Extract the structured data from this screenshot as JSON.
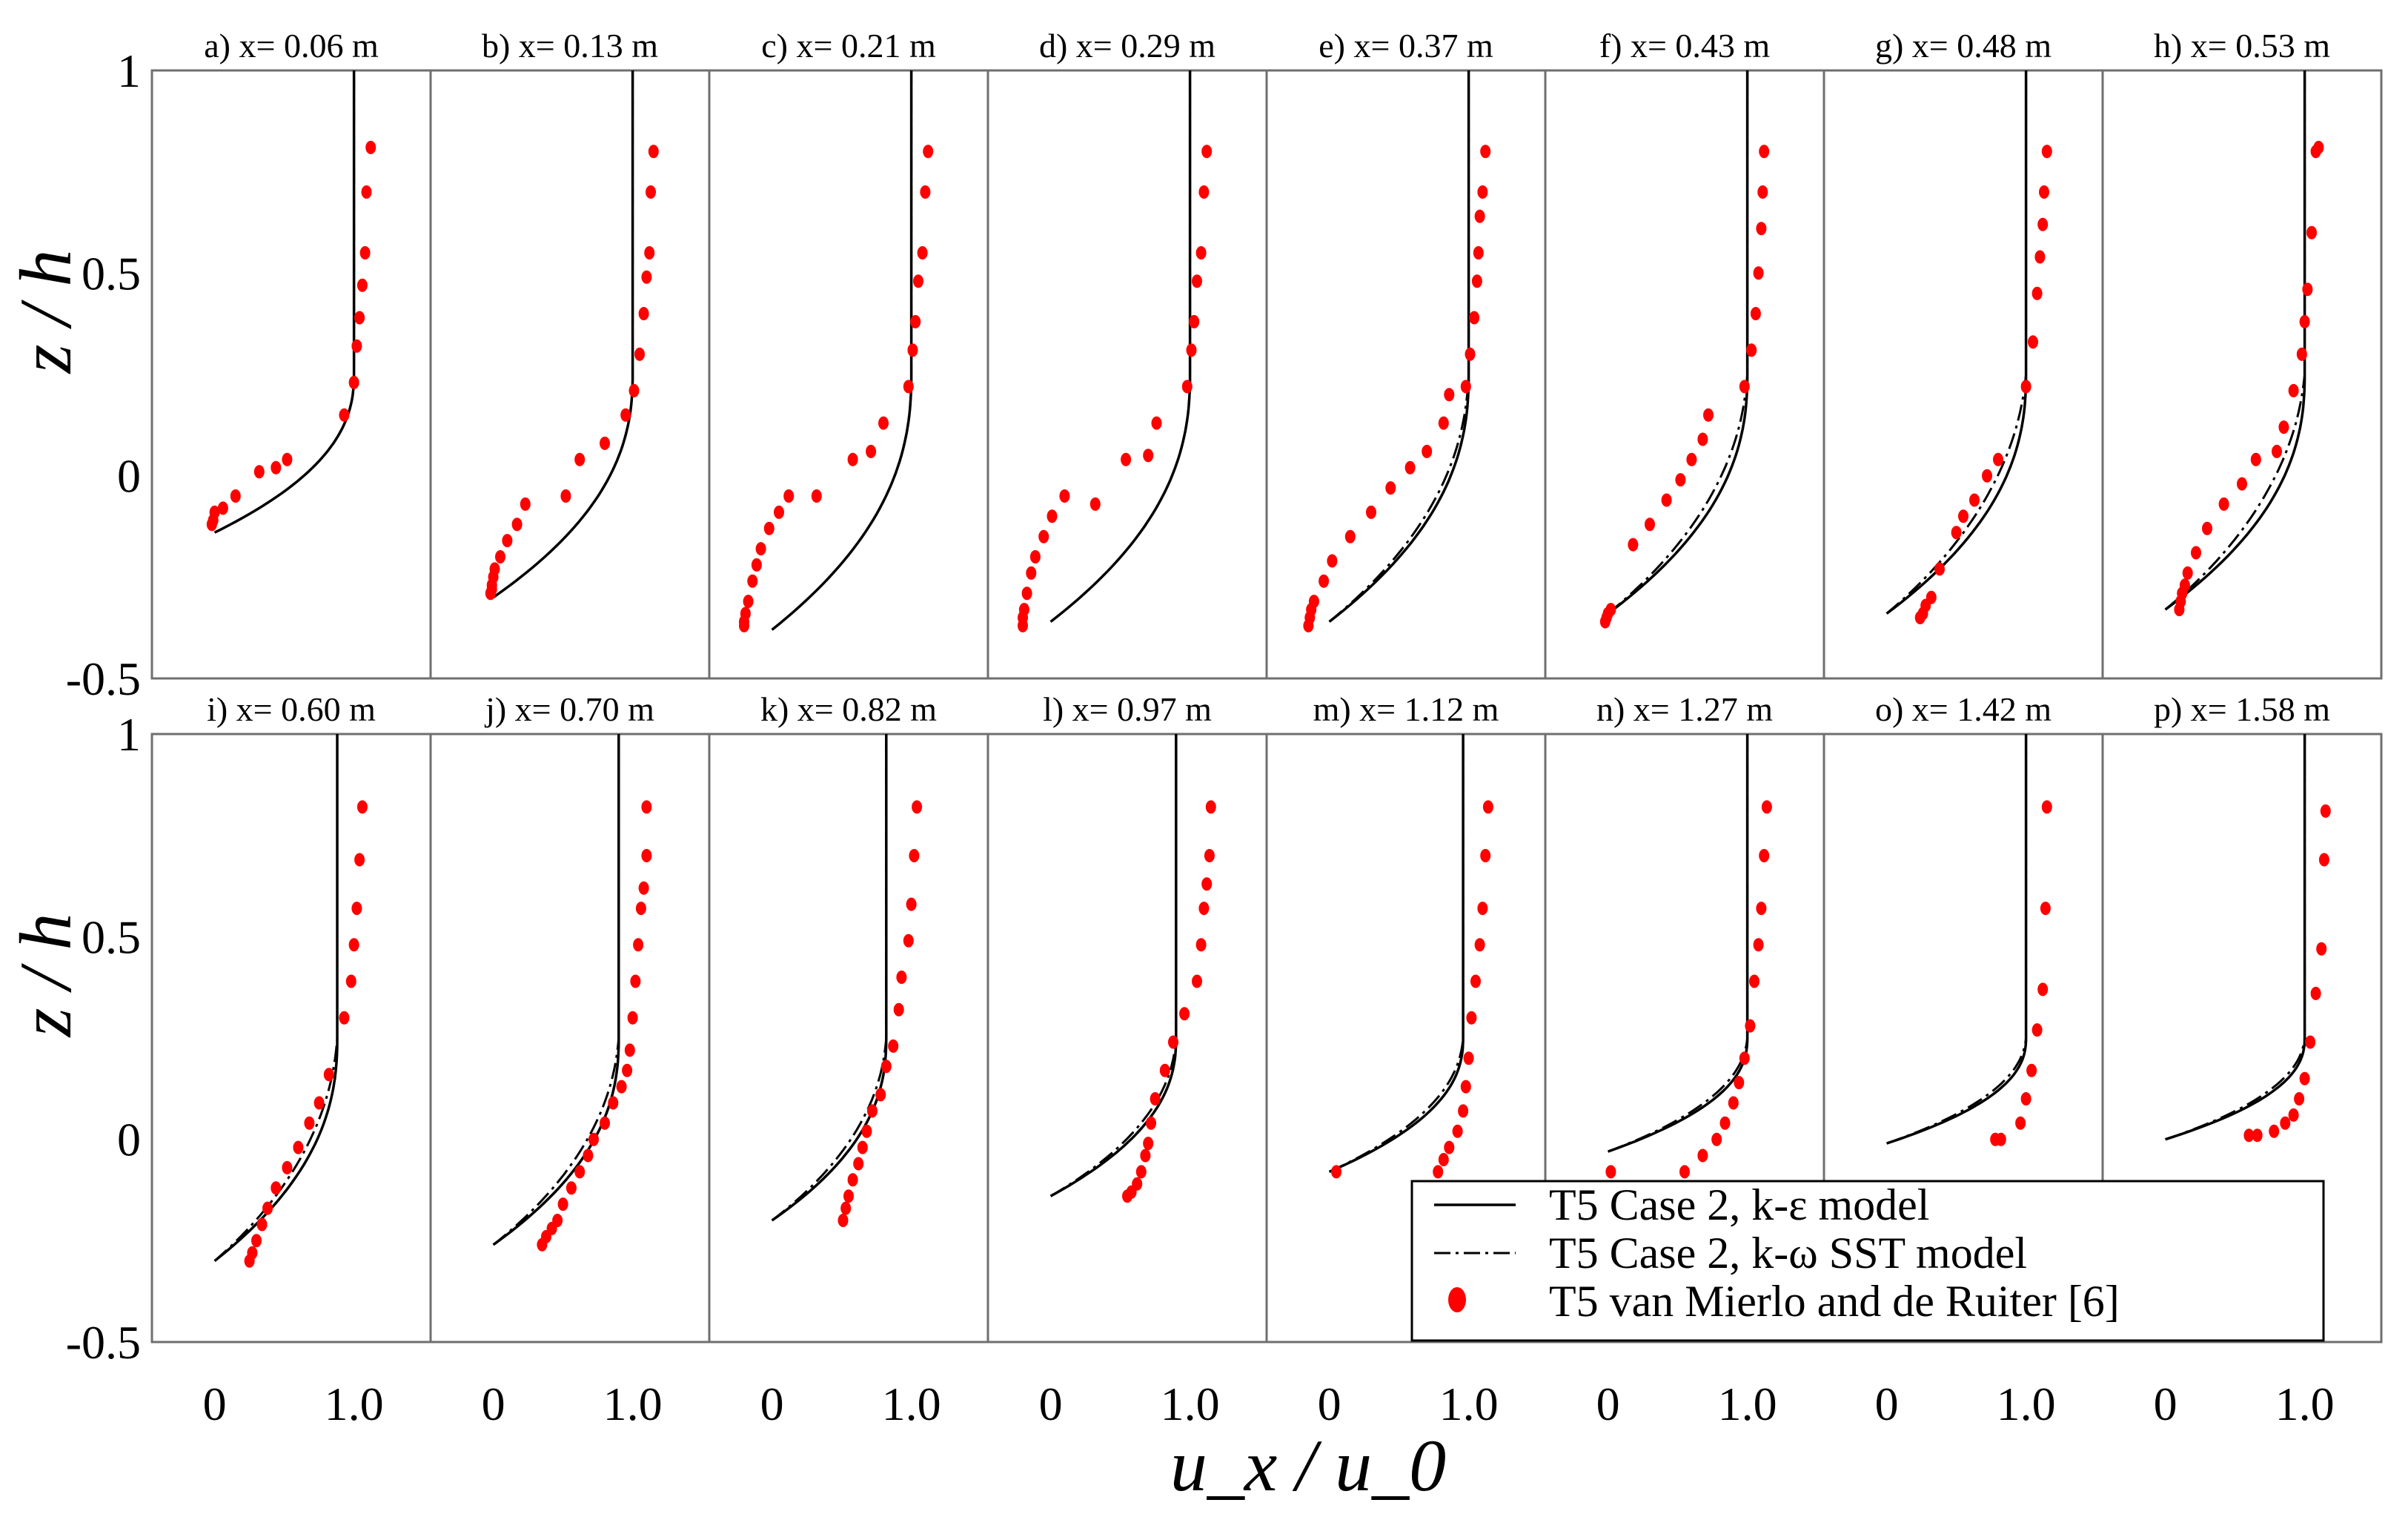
{
  "chart_data": {
    "type": "line",
    "layout": "2 rows x 8 panels, shared axes",
    "xlabel": "u_x / u_0",
    "ylabel": "z / h",
    "xlim": [
      -0.45,
      1.55
    ],
    "ylim": [
      -0.5,
      1.0
    ],
    "x_ticks": [
      "0",
      "1.0"
    ],
    "y_ticks": [
      "1",
      "0.5",
      "0",
      "-0.5"
    ],
    "grid": false,
    "legend_position": "bottom-right",
    "legend": [
      {
        "label": "T5 Case 2, k-ε model",
        "style": "solid",
        "color": "#000000"
      },
      {
        "label": "T5 Case 2, k-ω SST model",
        "style": "dash-dot",
        "color": "#000000"
      },
      {
        "label": "T5 van Mierlo and de Ruiter [6]",
        "style": "dots",
        "color": "#ff0000"
      }
    ],
    "panels": [
      {
        "title": "a) x= 0.06 m",
        "bottom": -0.14,
        "uinf": 1.0,
        "sst_dx": 0.0,
        "exp_u": [
          -0.02,
          -0.01,
          0.0,
          0.06,
          0.15,
          0.32,
          0.44,
          0.52,
          0.93,
          1.0,
          1.02,
          1.04,
          1.06,
          1.08,
          1.09,
          1.12
        ],
        "exp_z": [
          -0.12,
          -0.11,
          -0.09,
          -0.08,
          -0.05,
          0.01,
          0.02,
          0.04,
          0.15,
          0.23,
          0.32,
          0.39,
          0.47,
          0.55,
          0.7,
          0.81
        ]
      },
      {
        "title": "b) x= 0.13 m",
        "bottom": -0.3,
        "uinf": 1.0,
        "sst_dx": 0.0,
        "exp_u": [
          -0.02,
          -0.01,
          -0.01,
          0.0,
          0.01,
          0.05,
          0.1,
          0.17,
          0.23,
          0.52,
          0.62,
          0.8,
          0.95,
          1.01,
          1.05,
          1.08,
          1.1,
          1.12,
          1.13,
          1.15
        ],
        "exp_z": [
          -0.29,
          -0.28,
          -0.27,
          -0.25,
          -0.23,
          -0.2,
          -0.16,
          -0.12,
          -0.07,
          -0.05,
          0.04,
          0.08,
          0.15,
          0.21,
          0.3,
          0.4,
          0.49,
          0.55,
          0.7,
          0.8
        ]
      },
      {
        "title": "c) x= 0.21 m",
        "bottom": -0.38,
        "uinf": 1.0,
        "sst_dx": 0.0,
        "exp_u": [
          -0.2,
          -0.2,
          -0.19,
          -0.17,
          -0.14,
          -0.11,
          -0.08,
          -0.02,
          0.05,
          0.12,
          0.32,
          0.58,
          0.71,
          0.8,
          0.98,
          1.01,
          1.03,
          1.05,
          1.08,
          1.1,
          1.12
        ],
        "exp_z": [
          -0.37,
          -0.36,
          -0.34,
          -0.31,
          -0.26,
          -0.22,
          -0.18,
          -0.13,
          -0.09,
          -0.05,
          -0.05,
          0.04,
          0.06,
          0.13,
          0.22,
          0.31,
          0.38,
          0.48,
          0.55,
          0.7,
          0.8
        ]
      },
      {
        "title": "d) x= 0.29 m",
        "bottom": -0.36,
        "uinf": 1.0,
        "sst_dx": 0.0,
        "exp_u": [
          -0.2,
          -0.2,
          -0.19,
          -0.17,
          -0.14,
          -0.11,
          -0.05,
          0.01,
          0.1,
          0.32,
          0.54,
          0.7,
          0.76,
          0.98,
          1.01,
          1.03,
          1.05,
          1.08,
          1.1,
          1.12
        ],
        "exp_z": [
          -0.37,
          -0.35,
          -0.33,
          -0.29,
          -0.24,
          -0.2,
          -0.15,
          -0.1,
          -0.05,
          -0.07,
          0.04,
          0.05,
          0.13,
          0.22,
          0.31,
          0.38,
          0.48,
          0.55,
          0.7,
          0.8
        ]
      },
      {
        "title": "e) x= 0.37 m",
        "bottom": -0.36,
        "uinf": 1.0,
        "sst_dx": -0.04,
        "exp_u": [
          -0.15,
          -0.14,
          -0.13,
          -0.11,
          -0.04,
          0.02,
          0.15,
          0.3,
          0.44,
          0.58,
          0.7,
          0.82,
          0.86,
          0.98,
          1.01,
          1.04,
          1.06,
          1.07,
          1.08,
          1.1,
          1.12
        ],
        "exp_z": [
          -0.37,
          -0.35,
          -0.33,
          -0.31,
          -0.26,
          -0.21,
          -0.15,
          -0.09,
          -0.03,
          0.02,
          0.06,
          0.13,
          0.2,
          0.22,
          0.3,
          0.39,
          0.48,
          0.55,
          0.64,
          0.7,
          0.8
        ]
      },
      {
        "title": "f) x= 0.43 m",
        "bottom": -0.34,
        "uinf": 1.0,
        "sst_dx": -0.06,
        "exp_u": [
          -0.02,
          -0.01,
          0.0,
          0.02,
          0.18,
          0.3,
          0.42,
          0.52,
          0.6,
          0.68,
          0.72,
          0.98,
          1.03,
          1.06,
          1.08,
          1.1,
          1.11,
          1.12
        ],
        "exp_z": [
          -0.36,
          -0.35,
          -0.34,
          -0.33,
          -0.17,
          -0.12,
          -0.06,
          -0.01,
          0.04,
          0.09,
          0.15,
          0.22,
          0.31,
          0.4,
          0.5,
          0.61,
          0.7,
          0.8
        ]
      },
      {
        "title": "g) x= 0.48 m",
        "bottom": -0.34,
        "uinf": 1.0,
        "sst_dx": -0.08,
        "exp_u": [
          0.24,
          0.26,
          0.28,
          0.32,
          0.38,
          0.5,
          0.55,
          0.63,
          0.72,
          0.8,
          1.0,
          1.05,
          1.08,
          1.1,
          1.12,
          1.13,
          1.15
        ],
        "exp_z": [
          -0.35,
          -0.34,
          -0.32,
          -0.3,
          -0.23,
          -0.14,
          -0.1,
          -0.06,
          0.0,
          0.04,
          0.22,
          0.33,
          0.45,
          0.54,
          0.62,
          0.7,
          0.8
        ]
      },
      {
        "title": "h) x= 0.53 m",
        "bottom": -0.33,
        "uinf": 1.0,
        "sst_dx": -0.08,
        "exp_u": [
          0.1,
          0.11,
          0.12,
          0.14,
          0.16,
          0.22,
          0.3,
          0.42,
          0.55,
          0.65,
          0.8,
          0.85,
          0.92,
          0.98,
          1.0,
          1.02,
          1.05,
          1.08,
          1.1
        ],
        "exp_z": [
          -0.33,
          -0.31,
          -0.29,
          -0.27,
          -0.24,
          -0.19,
          -0.13,
          -0.07,
          -0.02,
          0.04,
          0.06,
          0.12,
          0.21,
          0.3,
          0.38,
          0.46,
          0.6,
          0.8,
          0.81
        ]
      },
      {
        "title": "i) x= 0.60 m",
        "bottom": -0.3,
        "uinf": 0.88,
        "sst_dx": -0.06,
        "exp_u": [
          0.25,
          0.27,
          0.3,
          0.34,
          0.38,
          0.44,
          0.52,
          0.6,
          0.68,
          0.75,
          0.82,
          0.93,
          0.98,
          1.0,
          1.02,
          1.04,
          1.06
        ],
        "exp_z": [
          -0.3,
          -0.28,
          -0.25,
          -0.21,
          -0.17,
          -0.12,
          -0.07,
          -0.02,
          0.04,
          0.09,
          0.16,
          0.3,
          0.39,
          0.48,
          0.57,
          0.69,
          0.82
        ]
      },
      {
        "title": "j) x= 0.70 m",
        "bottom": -0.26,
        "uinf": 0.9,
        "sst_dx": -0.06,
        "exp_u": [
          0.35,
          0.38,
          0.42,
          0.46,
          0.5,
          0.56,
          0.62,
          0.68,
          0.72,
          0.8,
          0.86,
          0.92,
          0.96,
          0.98,
          1.0,
          1.02,
          1.04,
          1.06,
          1.08,
          1.1,
          1.1
        ],
        "exp_z": [
          -0.26,
          -0.24,
          -0.22,
          -0.2,
          -0.16,
          -0.12,
          -0.08,
          -0.04,
          0.0,
          0.04,
          0.09,
          0.13,
          0.17,
          0.22,
          0.3,
          0.39,
          0.48,
          0.57,
          0.62,
          0.7,
          0.82
        ]
      },
      {
        "title": "k) x= 0.82 m",
        "bottom": -0.2,
        "uinf": 0.82,
        "sst_dx": -0.05,
        "exp_u": [
          0.51,
          0.53,
          0.55,
          0.58,
          0.62,
          0.65,
          0.68,
          0.72,
          0.78,
          0.82,
          0.87,
          0.91,
          0.93,
          0.98,
          1.0,
          1.02,
          1.04
        ],
        "exp_z": [
          -0.2,
          -0.17,
          -0.14,
          -0.1,
          -0.06,
          -0.02,
          0.02,
          0.07,
          0.11,
          0.18,
          0.23,
          0.32,
          0.4,
          0.49,
          0.58,
          0.7,
          0.82
        ]
      },
      {
        "title": "l) x= 0.97 m",
        "bottom": -0.14,
        "uinf": 0.9,
        "sst_dx": -0.04,
        "exp_u": [
          0.55,
          0.58,
          0.62,
          0.65,
          0.68,
          0.7,
          0.72,
          0.75,
          0.82,
          0.88,
          0.96,
          1.05,
          1.08,
          1.1,
          1.12,
          1.14,
          1.15
        ],
        "exp_z": [
          -0.14,
          -0.13,
          -0.11,
          -0.08,
          -0.04,
          -0.01,
          0.04,
          0.1,
          0.17,
          0.24,
          0.31,
          0.39,
          0.48,
          0.57,
          0.63,
          0.7,
          0.82
        ]
      },
      {
        "title": "m) x= 1.12 m",
        "bottom": -0.08,
        "uinf": 0.96,
        "sst_dx": -0.04,
        "exp_u": [
          0.05,
          0.78,
          0.82,
          0.86,
          0.92,
          0.96,
          0.98,
          1.0,
          1.02,
          1.05,
          1.08,
          1.1,
          1.12,
          1.14
        ],
        "exp_z": [
          -0.08,
          -0.08,
          -0.05,
          -0.02,
          0.02,
          0.07,
          0.13,
          0.2,
          0.3,
          0.39,
          0.48,
          0.57,
          0.7,
          0.82
        ]
      },
      {
        "title": "n) x= 1.27 m",
        "bottom": -0.03,
        "uinf": 1.0,
        "sst_dx": -0.04,
        "exp_u": [
          0.02,
          0.55,
          0.68,
          0.78,
          0.84,
          0.9,
          0.94,
          0.98,
          1.02,
          1.05,
          1.08,
          1.1,
          1.12,
          1.14
        ],
        "exp_z": [
          -0.08,
          -0.08,
          -0.04,
          0.0,
          0.04,
          0.09,
          0.14,
          0.2,
          0.28,
          0.39,
          0.48,
          0.57,
          0.7,
          0.82
        ]
      },
      {
        "title": "o) x= 1.42 m",
        "bottom": -0.01,
        "uinf": 1.0,
        "sst_dx": -0.04,
        "exp_u": [
          0.78,
          0.82,
          0.96,
          1.0,
          1.04,
          1.08,
          1.12,
          1.14,
          1.15
        ],
        "exp_z": [
          0.0,
          0.0,
          0.04,
          0.1,
          0.17,
          0.27,
          0.37,
          0.57,
          0.82
        ]
      },
      {
        "title": "p) x= 1.58 m",
        "bottom": 0.0,
        "uinf": 1.0,
        "sst_dx": -0.04,
        "exp_u": [
          0.6,
          0.66,
          0.78,
          0.86,
          0.92,
          0.96,
          1.0,
          1.04,
          1.08,
          1.12,
          1.14,
          1.15
        ],
        "exp_z": [
          0.01,
          0.01,
          0.02,
          0.04,
          0.06,
          0.1,
          0.15,
          0.24,
          0.36,
          0.47,
          0.69,
          0.81
        ]
      }
    ]
  }
}
